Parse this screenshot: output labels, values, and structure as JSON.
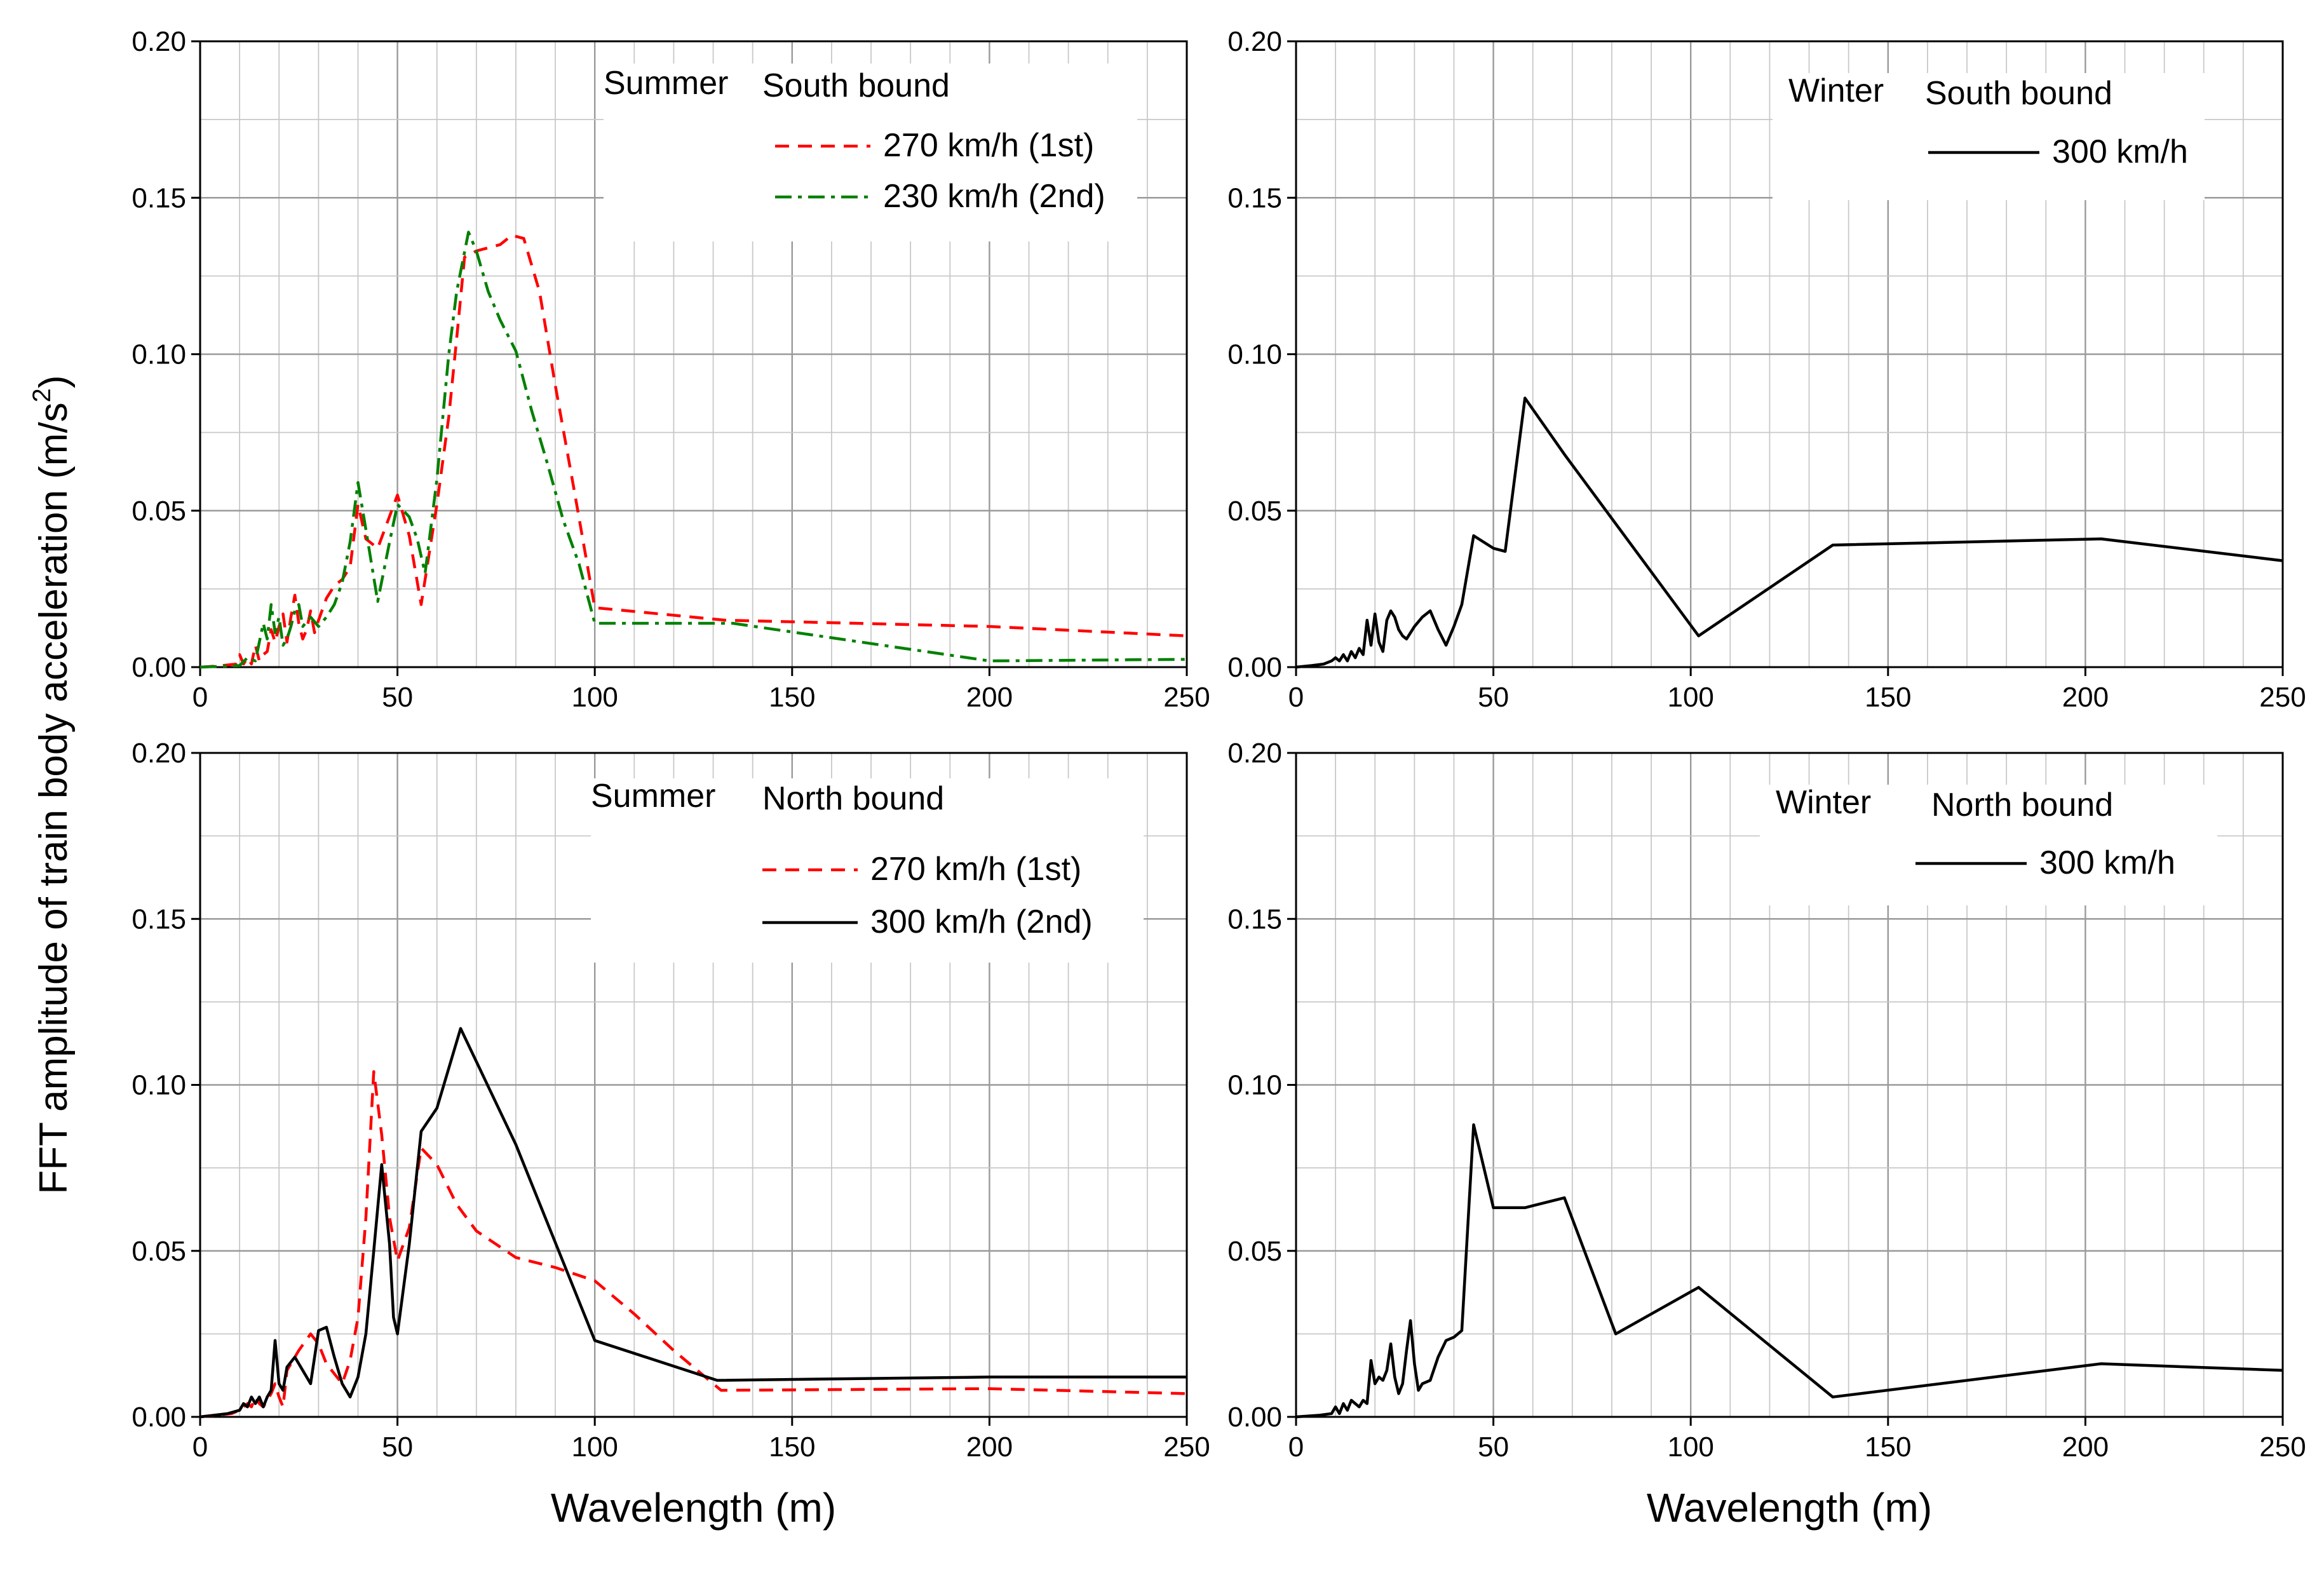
{
  "figure": {
    "ylabel": "FFT amplitude of train body acceleration (m/s",
    "ylabel_sup": "2",
    "ylabel_end": ")",
    "xlabel": "Wavelength (m)"
  },
  "colors": {
    "red": "#ff0000",
    "green": "#008000",
    "black": "#000000",
    "grid": "#c8c8c8",
    "gridMajor": "#9a9a9a"
  },
  "chart_data": [
    {
      "type": "line",
      "id": "summer-south",
      "xlim": [
        0,
        250
      ],
      "ylim": [
        0,
        0.2
      ],
      "xticks": [
        0,
        50,
        100,
        150,
        200,
        250
      ],
      "yticks": [
        0.0,
        0.05,
        0.1,
        0.15,
        0.2
      ],
      "xtick_labels": [
        "0",
        "50",
        "100",
        "150",
        "200",
        "250"
      ],
      "ytick_labels": [
        "0.00",
        "0.05",
        "0.10",
        "0.15",
        "0.20"
      ],
      "xlabel": "",
      "legend_title_season": "Summer",
      "legend_title_direction": "South bound",
      "series": [
        {
          "name": "270 km/h (1st)",
          "style": "dashed",
          "color": "#ff0000",
          "x": [
            0,
            5,
            9,
            10,
            11,
            12,
            13,
            14,
            15,
            16,
            17,
            18,
            19,
            20,
            21,
            22,
            23,
            24,
            25,
            26,
            27,
            28,
            29,
            30,
            32,
            34,
            36,
            38,
            40,
            42,
            45,
            50,
            53,
            56,
            57,
            60,
            63,
            65,
            67,
            70,
            73,
            76,
            79,
            82,
            86,
            90,
            95,
            100,
            133,
            200,
            250
          ],
          "y": [
            0,
            0.0004,
            0.001,
            0.004,
            0.001,
            0.003,
            0.001,
            0.007,
            0.002,
            0.004,
            0.005,
            0.012,
            0.008,
            0.013,
            0.017,
            0.008,
            0.016,
            0.023,
            0.014,
            0.009,
            0.012,
            0.018,
            0.011,
            0.015,
            0.022,
            0.026,
            0.028,
            0.032,
            0.052,
            0.041,
            0.038,
            0.055,
            0.042,
            0.02,
            0.028,
            0.052,
            0.08,
            0.105,
            0.131,
            0.133,
            0.134,
            0.135,
            0.138,
            0.137,
            0.12,
            0.09,
            0.055,
            0.019,
            0.015,
            0.013,
            0.01
          ]
        },
        {
          "name": "230 km/h (2nd)",
          "style": "dashdot",
          "color": "#008000",
          "x": [
            0,
            10,
            12,
            14,
            16,
            17,
            18,
            19,
            20,
            21,
            22,
            23,
            24,
            25,
            26,
            28,
            30,
            32,
            34,
            36,
            38,
            40,
            42,
            45,
            48,
            50,
            53,
            55,
            57,
            60,
            63,
            65,
            68,
            70,
            73,
            76,
            80,
            84,
            88,
            92,
            96,
            100,
            135,
            200,
            250
          ],
          "y": [
            0,
            0.0005,
            0.003,
            0.002,
            0.014,
            0.009,
            0.02,
            0.011,
            0.016,
            0.007,
            0.009,
            0.013,
            0.018,
            0.02,
            0.013,
            0.016,
            0.013,
            0.016,
            0.02,
            0.027,
            0.04,
            0.059,
            0.044,
            0.021,
            0.04,
            0.052,
            0.048,
            0.041,
            0.03,
            0.06,
            0.1,
            0.12,
            0.139,
            0.133,
            0.12,
            0.111,
            0.101,
            0.082,
            0.065,
            0.047,
            0.033,
            0.014,
            0.014,
            0.002,
            0.0025
          ]
        }
      ]
    },
    {
      "type": "line",
      "id": "winter-south",
      "xlim": [
        0,
        250
      ],
      "ylim": [
        0,
        0.2
      ],
      "xticks": [
        0,
        50,
        100,
        150,
        200,
        250
      ],
      "yticks": [
        0.0,
        0.05,
        0.1,
        0.15,
        0.2
      ],
      "xtick_labels": [
        "0",
        "50",
        "100",
        "150",
        "200",
        "250"
      ],
      "ytick_labels": [
        "0.00",
        "0.05",
        "0.10",
        "0.15",
        "0.20"
      ],
      "xlabel": "",
      "legend_title_season": "Winter",
      "legend_title_direction": "South bound",
      "series": [
        {
          "name": "300 km/h",
          "style": "solid",
          "color": "#000000",
          "x": [
            0,
            4,
            7,
            9,
            10,
            11,
            12,
            13,
            14,
            15,
            16,
            17,
            18,
            19,
            20,
            21,
            22,
            23,
            24,
            25,
            26,
            27,
            28,
            30,
            32,
            34,
            36,
            38,
            40,
            42,
            45,
            50,
            53,
            58,
            68,
            102,
            136,
            204,
            250
          ],
          "y": [
            0,
            0.0005,
            0.001,
            0.002,
            0.003,
            0.002,
            0.004,
            0.002,
            0.005,
            0.003,
            0.006,
            0.004,
            0.015,
            0.007,
            0.017,
            0.008,
            0.005,
            0.015,
            0.018,
            0.016,
            0.012,
            0.01,
            0.009,
            0.013,
            0.016,
            0.018,
            0.012,
            0.007,
            0.013,
            0.02,
            0.042,
            0.038,
            0.037,
            0.086,
            0.068,
            0.01,
            0.039,
            0.041,
            0.034
          ]
        }
      ]
    },
    {
      "type": "line",
      "id": "summer-north",
      "xlim": [
        0,
        250
      ],
      "ylim": [
        0,
        0.2
      ],
      "xticks": [
        0,
        50,
        100,
        150,
        200,
        250
      ],
      "yticks": [
        0.0,
        0.05,
        0.1,
        0.15,
        0.2
      ],
      "xtick_labels": [
        "0",
        "50",
        "100",
        "150",
        "200",
        "250"
      ],
      "ytick_labels": [
        "0.00",
        "0.05",
        "0.10",
        "0.15",
        "0.20"
      ],
      "xlabel": "Wavelength (m)",
      "legend_title_season": "Summer",
      "legend_title_direction": "North bound",
      "series": [
        {
          "name": "270 km/h (1st)",
          "style": "dashed",
          "color": "#ff0000",
          "x": [
            0,
            8,
            10,
            12,
            13,
            14,
            15,
            16,
            17,
            18,
            19,
            20,
            21,
            22,
            25,
            28,
            30,
            32,
            34,
            36,
            38,
            40,
            42,
            44,
            46,
            48,
            50,
            53,
            56,
            60,
            65,
            70,
            80,
            90,
            100,
            110,
            120,
            132,
            200,
            250
          ],
          "y": [
            0,
            0.001,
            0.002,
            0.004,
            0.003,
            0.006,
            0.004,
            0.003,
            0.005,
            0.007,
            0.01,
            0.006,
            0.003,
            0.014,
            0.02,
            0.025,
            0.022,
            0.016,
            0.013,
            0.01,
            0.017,
            0.03,
            0.06,
            0.104,
            0.085,
            0.06,
            0.047,
            0.057,
            0.081,
            0.076,
            0.064,
            0.056,
            0.048,
            0.045,
            0.041,
            0.031,
            0.02,
            0.008,
            0.0085,
            0.007
          ]
        },
        {
          "name": "300 km/h (2nd)",
          "style": "solid",
          "color": "#000000",
          "x": [
            0,
            7,
            10,
            11,
            12,
            13,
            14,
            15,
            16,
            17,
            18,
            19,
            20,
            21,
            22,
            24,
            26,
            28,
            30,
            32,
            34,
            36,
            38,
            40,
            42,
            44,
            46,
            48,
            49,
            50,
            53,
            56,
            60,
            66,
            80,
            100,
            131,
            200,
            250
          ],
          "y": [
            0,
            0.001,
            0.002,
            0.004,
            0.003,
            0.006,
            0.004,
            0.006,
            0.003,
            0.006,
            0.008,
            0.023,
            0.01,
            0.008,
            0.015,
            0.018,
            0.014,
            0.01,
            0.026,
            0.027,
            0.018,
            0.01,
            0.006,
            0.012,
            0.025,
            0.05,
            0.076,
            0.052,
            0.03,
            0.025,
            0.052,
            0.086,
            0.093,
            0.117,
            0.082,
            0.023,
            0.011,
            0.012,
            0.012
          ]
        }
      ]
    },
    {
      "type": "line",
      "id": "winter-north",
      "xlim": [
        0,
        250
      ],
      "ylim": [
        0,
        0.2
      ],
      "xticks": [
        0,
        50,
        100,
        150,
        200,
        250
      ],
      "yticks": [
        0.0,
        0.05,
        0.1,
        0.15,
        0.2
      ],
      "xtick_labels": [
        "0",
        "50",
        "100",
        "150",
        "200",
        "250"
      ],
      "ytick_labels": [
        "0.00",
        "0.05",
        "0.10",
        "0.15",
        "0.20"
      ],
      "xlabel": "Wavelength (m)",
      "legend_title_season": "Winter",
      "legend_title_direction": "North bound",
      "series": [
        {
          "name": "300 km/h",
          "style": "solid",
          "color": "#000000",
          "x": [
            0,
            6,
            9,
            10,
            11,
            12,
            13,
            14,
            15,
            16,
            17,
            18,
            19,
            20,
            21,
            22,
            23,
            24,
            25,
            26,
            27,
            28,
            29,
            30,
            31,
            32,
            34,
            36,
            38,
            40,
            42,
            45,
            50,
            58,
            68,
            81,
            102,
            136,
            204,
            250
          ],
          "y": [
            0,
            0.0005,
            0.001,
            0.003,
            0.001,
            0.004,
            0.002,
            0.005,
            0.004,
            0.003,
            0.005,
            0.004,
            0.017,
            0.01,
            0.012,
            0.011,
            0.014,
            0.022,
            0.012,
            0.007,
            0.01,
            0.02,
            0.029,
            0.016,
            0.008,
            0.01,
            0.011,
            0.018,
            0.023,
            0.024,
            0.026,
            0.088,
            0.063,
            0.063,
            0.066,
            0.025,
            0.039,
            0.006,
            0.016,
            0.014
          ]
        }
      ]
    }
  ]
}
